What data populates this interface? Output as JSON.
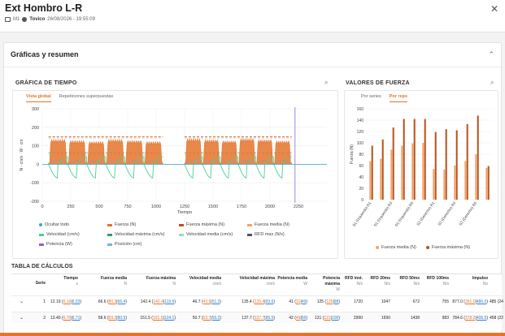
{
  "header": {
    "title": "Ext Hombro L-R",
    "device": "M1",
    "user": "Tovico",
    "datetime": "26/08/2026 - 19:55:09"
  },
  "panel": {
    "title": "Gráficas y resumen"
  },
  "time_chart": {
    "section_title": "GRÁFICA DE TIEMPO",
    "tabs": [
      "Vista global",
      "Repeticiones superpuestas"
    ],
    "active_tab": 0,
    "ylabel": "N · cm/s · W · cm",
    "xlabel": "Tiempo",
    "legend": [
      {
        "label": "Ocultar todo",
        "color": "#35a8c9"
      },
      {
        "label": "Fuerza (N)",
        "color": "#e5732b"
      },
      {
        "label": "Fuerza máxima (N)",
        "color": "#b8501a"
      },
      {
        "label": "Fuerza media (N)",
        "color": "#f2a36b"
      },
      {
        "label": "Velocidad (cm/s)",
        "color": "#4bcf8c"
      },
      {
        "label": "Velocidad máxima (cm/s)",
        "color": "#2b9e5f"
      },
      {
        "label": "Velocidad media (cm/s)",
        "color": "#8fe0b4"
      },
      {
        "label": "RFD max (N/s)",
        "color": "#555555"
      },
      {
        "label": "Potencia (W)",
        "color": "#9b59d0"
      },
      {
        "label": "Posición (cm)",
        "color": "#7ab0e0"
      }
    ]
  },
  "force_chart": {
    "section_title": "VALORES DE FUERZA",
    "tabs": [
      "Por series",
      "Por reps"
    ],
    "active_tab": 1,
    "ylabel": "Fuerza (N)",
    "legend": [
      {
        "label": "Fuerza media (N)",
        "color": "#f2a36b"
      },
      {
        "label": "Fuerza máxima (N)",
        "color": "#b8501a"
      }
    ]
  },
  "chart_data": [
    {
      "type": "line",
      "title": "GRÁFICA DE TIEMPO",
      "xlabel": "Tiempo",
      "ylabel": "N · cm/s · W · cm",
      "xlim": [
        0,
        2500
      ],
      "ylim": [
        -200,
        300
      ],
      "xticks": [
        0,
        250,
        500,
        750,
        1000,
        1250,
        1500,
        1750,
        2000,
        2250
      ],
      "yticks": [
        -200,
        -100,
        0,
        100,
        200,
        300
      ],
      "segments": [
        [
          55,
          1060
        ],
        [
          1250,
          2190
        ]
      ],
      "reps_per_segment": 6,
      "marker_x": 2220,
      "series": [
        {
          "name": "Fuerza (N)",
          "peak": 135,
          "base": 0
        },
        {
          "name": "Fuerza máxima (N)",
          "level": 148
        },
        {
          "name": "Fuerza media (N)",
          "level": 142
        },
        {
          "name": "Velocidad máxima (cm/s)",
          "level": 62
        },
        {
          "name": "Velocidad media (cm/s)",
          "level": 50
        },
        {
          "name": "Velocidad (cm/s)",
          "low": -75,
          "high": 40
        },
        {
          "name": "Posición (cm)",
          "level": 20
        }
      ],
      "grid": true
    },
    {
      "type": "bar",
      "title": "VALORES DE FUERZA",
      "ylabel": "Fuerza (N)",
      "ylim": [
        0,
        160
      ],
      "yticks": [
        0,
        20,
        40,
        60,
        80,
        100,
        120,
        140,
        160
      ],
      "categories": [
        "S1 (Izquierdo) R1",
        "S1 (Izquierdo) R2",
        "S1 (Izquierdo) R3",
        "S1 (Izquierdo) R4",
        "S1 (Izquierdo) R5",
        "S1 (Izquierdo) R6",
        "S2 (Derecho) R1",
        "S2 (Derecho) R2",
        "S2 (Derecho) R3",
        "S2 (Derecho) R4",
        "S2 (Derecho) R5",
        "S2 (Derecho) R6"
      ],
      "xtick_labels": [
        "S1 (Izquierdo) R1",
        "S1 (Izquierdo) R3",
        "S1 (Izquierdo) R5",
        "S2 (Derecho) R1",
        "S2 (Derecho) R3",
        "S2 (Derecho) R5"
      ],
      "series": [
        {
          "name": "Fuerza media (N)",
          "values": [
            68,
            72,
            88,
            95,
            99,
            100,
            54,
            53,
            60,
            68,
            80,
            56
          ]
        },
        {
          "name": "Fuerza máxima (N)",
          "values": [
            95,
            106,
            127,
            142,
            142,
            142,
            119,
            124,
            122,
            133,
            148,
            59
          ]
        }
      ],
      "legend": "bottom"
    }
  ],
  "table": {
    "title": "TABLA DE CÁLCULOS",
    "columns": [
      {
        "label": "Serie",
        "unit": ""
      },
      {
        "label": "Tiempo",
        "unit": "s"
      },
      {
        "label": "Fuerza media",
        "unit": "N"
      },
      {
        "label": "Fuerza máxima",
        "unit": "N"
      },
      {
        "label": "Velocidad media",
        "unit": "cm/s"
      },
      {
        "label": "Velocidad máxima",
        "unit": "cm/s"
      },
      {
        "label": "Potencia media",
        "unit": "W"
      },
      {
        "label": "Potencia máxima",
        "unit": "W"
      },
      {
        "label": "RFD inst.",
        "unit": "N/s"
      },
      {
        "label": "RFD 20ms",
        "unit": "N/s"
      },
      {
        "label": "RFD 50ms",
        "unit": "N/s"
      },
      {
        "label": "RFD 100ms",
        "unit": "N/s"
      },
      {
        "label": "Impulso",
        "unit": "Ns"
      }
    ],
    "rows": [
      {
        "serie": "1",
        "tiempo": {
          "v": "12.19",
          "a": "6.16",
          "b": "6.03"
        },
        "fuerza_media": {
          "v": "66.6",
          "a": "80.3",
          "b": "66.4"
        },
        "fuerza_maxima": {
          "v": "142.4",
          "a": "142.4",
          "b": "119.6"
        },
        "vel_media": {
          "v": "46.7",
          "a": "43.6",
          "b": "51.3"
        },
        "vel_maxima": {
          "v": "135.4",
          "a": "135.4",
          "b": "93.6"
        },
        "pot_media": {
          "v": "41",
          "a": "31",
          "b": "49"
        },
        "pot_maxima": {
          "v": "125",
          "a": "125",
          "b": "98"
        },
        "rfd_inst": "1720",
        "rfd_20": "1047",
        "rfd_50": "672",
        "rfd_100": "755",
        "impulso": {
          "v": "877.0",
          "a": "391.0",
          "b": "486.0"
        },
        "extra": "485 (24"
      },
      {
        "serie": "2",
        "tiempo": {
          "v": "13.40",
          "a": "6.70",
          "b": "6.71"
        },
        "fuerza_media": {
          "v": "58.6",
          "a": "59.2",
          "b": "80.5"
        },
        "fuerza_maxima": {
          "v": "151.5",
          "a": "151.5",
          "b": "124.1"
        },
        "vel_media": {
          "v": "50.7",
          "a": "53.7",
          "b": "59.2"
        },
        "vel_maxima": {
          "v": "137.7",
          "a": "137.7",
          "b": "95.5"
        },
        "pot_media": {
          "v": "42",
          "a": "49",
          "b": "56"
        },
        "pot_maxima": {
          "v": "121",
          "a": "121",
          "b": "100"
        },
        "rfd_inst": "2990",
        "rfd_20": "1690",
        "rfd_50": "1438",
        "rfd_100": "983",
        "impulso": {
          "v": "784.6",
          "a": "378.2",
          "b": "406.5"
        },
        "extra": "458 (22"
      }
    ]
  }
}
